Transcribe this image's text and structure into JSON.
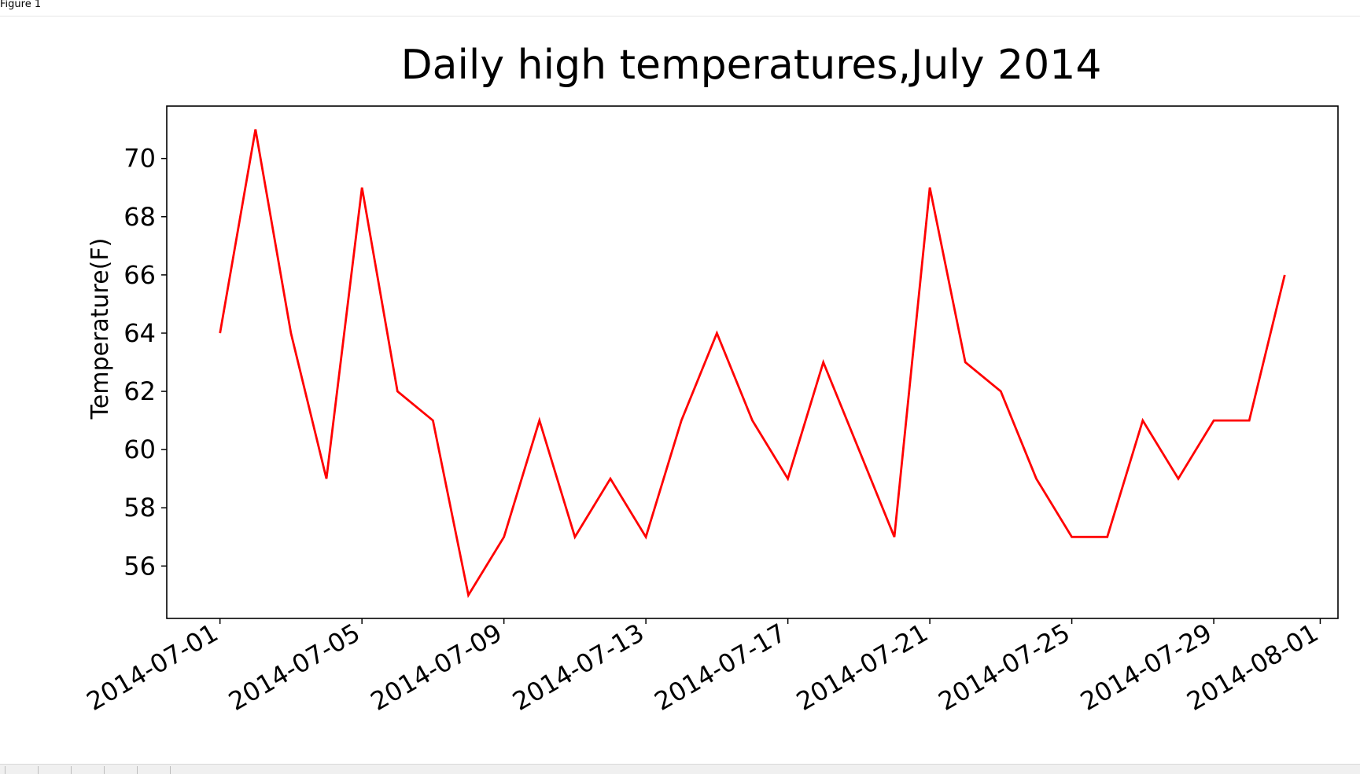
{
  "window": {
    "title": "Figure 1"
  },
  "chart_data": {
    "type": "line",
    "title": "Daily high temperatures,July 2014",
    "xlabel": "",
    "ylabel": "Temperature(F)",
    "x": [
      "2014-07-01",
      "2014-07-02",
      "2014-07-03",
      "2014-07-04",
      "2014-07-05",
      "2014-07-06",
      "2014-07-07",
      "2014-07-08",
      "2014-07-09",
      "2014-07-10",
      "2014-07-11",
      "2014-07-12",
      "2014-07-13",
      "2014-07-14",
      "2014-07-15",
      "2014-07-16",
      "2014-07-17",
      "2014-07-18",
      "2014-07-19",
      "2014-07-20",
      "2014-07-21",
      "2014-07-22",
      "2014-07-23",
      "2014-07-24",
      "2014-07-25",
      "2014-07-26",
      "2014-07-27",
      "2014-07-28",
      "2014-07-29",
      "2014-07-30",
      "2014-07-31"
    ],
    "series": [
      {
        "values": [
          64,
          71,
          64,
          59,
          69,
          62,
          61,
          55,
          57,
          61,
          57,
          59,
          57,
          61,
          64,
          61,
          59,
          63,
          60,
          57,
          69,
          63,
          62,
          59,
          57,
          57,
          61,
          59,
          61,
          61,
          66
        ],
        "color": "#ff0000"
      }
    ],
    "xticks": [
      "2014-07-01",
      "2014-07-05",
      "2014-07-09",
      "2014-07-13",
      "2014-07-17",
      "2014-07-21",
      "2014-07-25",
      "2014-07-29",
      "2014-08-01"
    ],
    "yticks": [
      56,
      58,
      60,
      62,
      64,
      66,
      68,
      70
    ],
    "xlim": [
      "2014-06-29.5",
      "2014-08-01.5"
    ],
    "ylim": [
      54.2,
      71.8
    ],
    "grid": false,
    "legend": "none"
  }
}
